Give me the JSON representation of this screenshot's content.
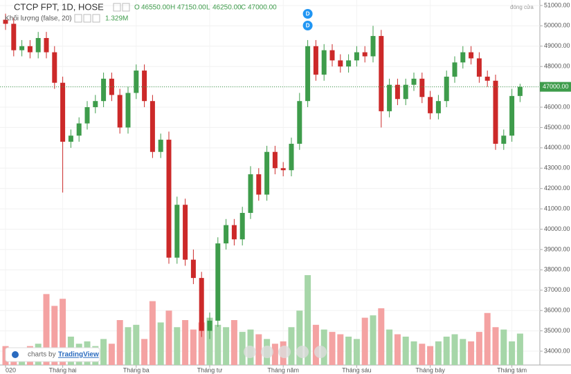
{
  "chart_data": {
    "type": "candlestick",
    "title": "CTCP FPT, 1D, HOSE",
    "legend": {
      "o_label": "O",
      "o": {
        "value": 46550,
        "label": "46550.00"
      },
      "h_label": "H",
      "h": {
        "value": 47150,
        "label": "47150.00"
      },
      "l_label": "L",
      "l": {
        "value": 46250,
        "label": "46250.00"
      },
      "c_label": "C",
      "c": {
        "value": 47000,
        "label": "47000.00"
      }
    },
    "volume_title": "Khối lượng (false, 20)",
    "volume_last": {
      "value": 1.329,
      "label": "1.329M"
    },
    "close_mode": "đóng cửa",
    "branding": {
      "prefix": "charts by",
      "name": "TradingView"
    },
    "markers": [
      {
        "text": "D",
        "index": 37
      },
      {
        "text": "D",
        "index": 37
      }
    ],
    "last_price": {
      "value": 47000,
      "label": "47000.00"
    },
    "up_color": "#3e9c4b",
    "down_color": "#cc2929",
    "vol_up_color": "#a6d6a8",
    "vol_down_color": "#f4a2a2",
    "open": [
      50300,
      50100,
      48800,
      49000,
      48700,
      49400,
      48700,
      47200,
      44300,
      44600,
      45200,
      46000,
      46300,
      47400,
      46600,
      45000,
      46700,
      47800,
      46300,
      43800,
      44400,
      38600,
      41200,
      38500,
      37600,
      35000,
      35500,
      39300,
      40200,
      39500,
      40800,
      42700,
      41700,
      43800,
      43000,
      42900,
      44200,
      46300,
      49000,
      47600,
      48800,
      48300,
      48000,
      48300,
      48700,
      48500,
      49500,
      45800,
      47100,
      46400,
      47100,
      47400,
      46500,
      45700,
      46300,
      47500,
      48200,
      48700,
      48400,
      47500,
      47300,
      44200,
      44600,
      46550
    ],
    "high": [
      50600,
      50400,
      49300,
      49300,
      49700,
      49700,
      49000,
      47500,
      44900,
      45500,
      46300,
      46600,
      47700,
      47700,
      46900,
      47000,
      48100,
      48100,
      46600,
      44700,
      44800,
      41600,
      41500,
      39000,
      37900,
      35900,
      39600,
      40500,
      40500,
      41100,
      43100,
      43000,
      44100,
      44100,
      43300,
      44500,
      46700,
      49300,
      49300,
      49100,
      49100,
      48600,
      48600,
      49000,
      49000,
      50000,
      49800,
      47400,
      47400,
      47400,
      47700,
      47700,
      46800,
      46600,
      47800,
      48500,
      49000,
      49000,
      48700,
      47800,
      47600,
      44900,
      46900,
      47150
    ],
    "low": [
      49800,
      48500,
      48500,
      48400,
      48400,
      48400,
      46900,
      41800,
      44000,
      44300,
      44900,
      45700,
      46000,
      46300,
      44700,
      44700,
      46400,
      46000,
      43500,
      43500,
      38300,
      38300,
      38200,
      37300,
      34700,
      34600,
      35200,
      39000,
      39200,
      39200,
      40500,
      41400,
      41400,
      42700,
      42600,
      42600,
      43900,
      46000,
      47300,
      47300,
      48000,
      47700,
      47700,
      48000,
      48200,
      48200,
      45000,
      45500,
      46100,
      46100,
      46800,
      46200,
      45400,
      45400,
      46000,
      47200,
      47900,
      48100,
      47200,
      47000,
      43900,
      43900,
      44300,
      46250
    ],
    "close": [
      50100,
      48800,
      49000,
      48700,
      49400,
      48700,
      47200,
      44300,
      44600,
      45200,
      46000,
      46300,
      47400,
      46600,
      45000,
      46700,
      47800,
      46300,
      43800,
      44400,
      38600,
      41200,
      38500,
      37600,
      35000,
      35500,
      39300,
      40200,
      39500,
      40800,
      42700,
      41700,
      43800,
      43000,
      42900,
      44200,
      46300,
      49000,
      47600,
      48800,
      48300,
      48000,
      48300,
      48700,
      48500,
      49500,
      45800,
      47100,
      46400,
      47100,
      47400,
      46500,
      45700,
      46300,
      47500,
      48200,
      48700,
      48400,
      47500,
      47300,
      44200,
      44600,
      46550,
      47000
    ],
    "volume": [
      0.8,
      0.7,
      0.6,
      0.8,
      0.9,
      3.0,
      2.5,
      2.8,
      1.2,
      0.9,
      1.0,
      0.8,
      1.1,
      0.9,
      1.9,
      1.6,
      1.7,
      1.1,
      2.7,
      1.8,
      2.3,
      1.6,
      1.9,
      1.5,
      1.8,
      2.0,
      1.7,
      1.6,
      1.9,
      1.4,
      1.5,
      1.3,
      1.1,
      0.9,
      1.0,
      1.6,
      2.3,
      3.8,
      1.7,
      1.5,
      1.4,
      1.3,
      1.2,
      1.1,
      2.0,
      2.1,
      2.4,
      1.5,
      1.3,
      1.2,
      1.0,
      0.9,
      0.8,
      1.0,
      1.2,
      1.3,
      1.1,
      1.0,
      1.4,
      2.2,
      1.6,
      1.5,
      1.0,
      1.329
    ],
    "ylim": [
      33320,
      51270
    ],
    "yticks": [
      {
        "value": 34000,
        "label": "34000.00"
      },
      {
        "value": 35000,
        "label": "35000.00"
      },
      {
        "value": 36000,
        "label": "36000.00"
      },
      {
        "value": 37000,
        "label": "37000.00"
      },
      {
        "value": 38000,
        "label": "38000.00"
      },
      {
        "value": 39000,
        "label": "39000.00"
      },
      {
        "value": 40000,
        "label": "40000.00"
      },
      {
        "value": 41000,
        "label": "41000.00"
      },
      {
        "value": 42000,
        "label": "42000.00"
      },
      {
        "value": 43000,
        "label": "43000.00"
      },
      {
        "value": 44000,
        "label": "44000.00"
      },
      {
        "value": 45000,
        "label": "45000.00"
      },
      {
        "value": 46000,
        "label": "46000.00"
      },
      {
        "value": 47000,
        "label": "47000.00"
      },
      {
        "value": 48000,
        "label": "48000.00"
      },
      {
        "value": 49000,
        "label": "49000.00"
      },
      {
        "value": 50000,
        "label": "50000.00"
      },
      {
        "value": 51000,
        "label": "51000.00"
      }
    ],
    "xticks": [
      {
        "value": 0,
        "label": "020"
      },
      {
        "value": 7,
        "label": "Tháng hai"
      },
      {
        "value": 16,
        "label": "Tháng ba"
      },
      {
        "value": 25,
        "label": "Tháng tư"
      },
      {
        "value": 34,
        "label": "Tháng năm"
      },
      {
        "value": 43,
        "label": "Tháng sáu"
      },
      {
        "value": 52,
        "label": "Tháng bảy"
      },
      {
        "value": 62,
        "label": "Tháng tám"
      }
    ]
  }
}
